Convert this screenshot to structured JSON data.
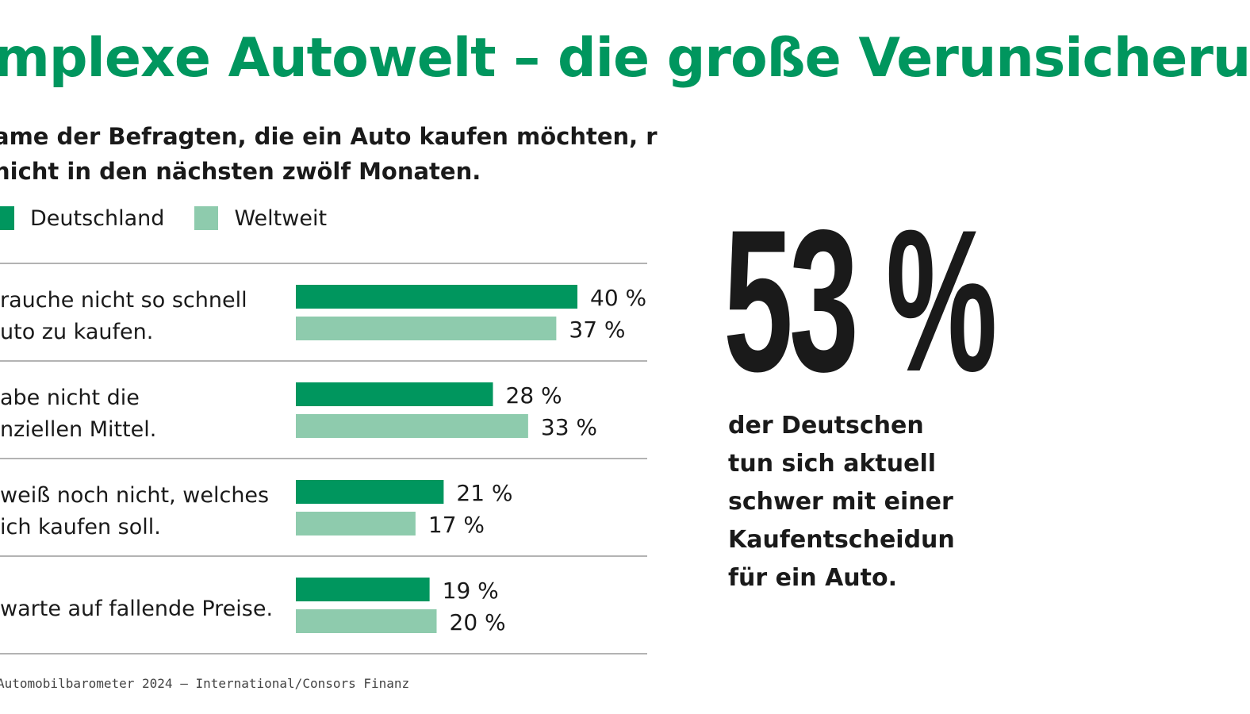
{
  "colors": {
    "accent": "#00965e",
    "dark_series": "#00965e",
    "light_series": "#8ecbad",
    "text": "#1a1a1a",
    "grid": "#9a9a9a"
  },
  "header": {
    "title": "mplexe Autowelt – die große Verunsicheru",
    "subtitle": "ame der Befragten, die ein Auto kaufen möchten, r nicht in den nächsten zwölf Monaten."
  },
  "legend": [
    {
      "label": "Deutschland",
      "color": "#00965e"
    },
    {
      "label": "Weltweit",
      "color": "#8ecbad"
    }
  ],
  "chart_data": {
    "type": "bar",
    "orientation": "horizontal",
    "categories": [
      [
        "rauche nicht so schnell",
        "uto zu kaufen."
      ],
      [
        "abe nicht die",
        "nziellen Mittel."
      ],
      [
        "weiß noch nicht, welches",
        "ich kaufen soll."
      ],
      [
        "warte auf fallende Preise."
      ]
    ],
    "series": [
      {
        "name": "Deutschland",
        "values": [
          40,
          28,
          21,
          19
        ],
        "labels": [
          "40 %",
          "28 %",
          "21 %",
          "19 %"
        ],
        "color": "#00965e"
      },
      {
        "name": "Weltweit",
        "values": [
          37,
          33,
          17,
          20
        ],
        "labels": [
          "37 %",
          "33 %",
          "17 %",
          "20 %"
        ],
        "color": "#8ecbad"
      }
    ],
    "xlim": [
      0,
      40
    ],
    "grid": true
  },
  "highlight": {
    "value": "53 %",
    "text": "der Deutschen\ntun sich aktuell\nschwer mit einer\nKaufentscheidun\nfür ein Auto."
  },
  "source": "Automobilbarometer 2024 – International/Consors Finanz"
}
